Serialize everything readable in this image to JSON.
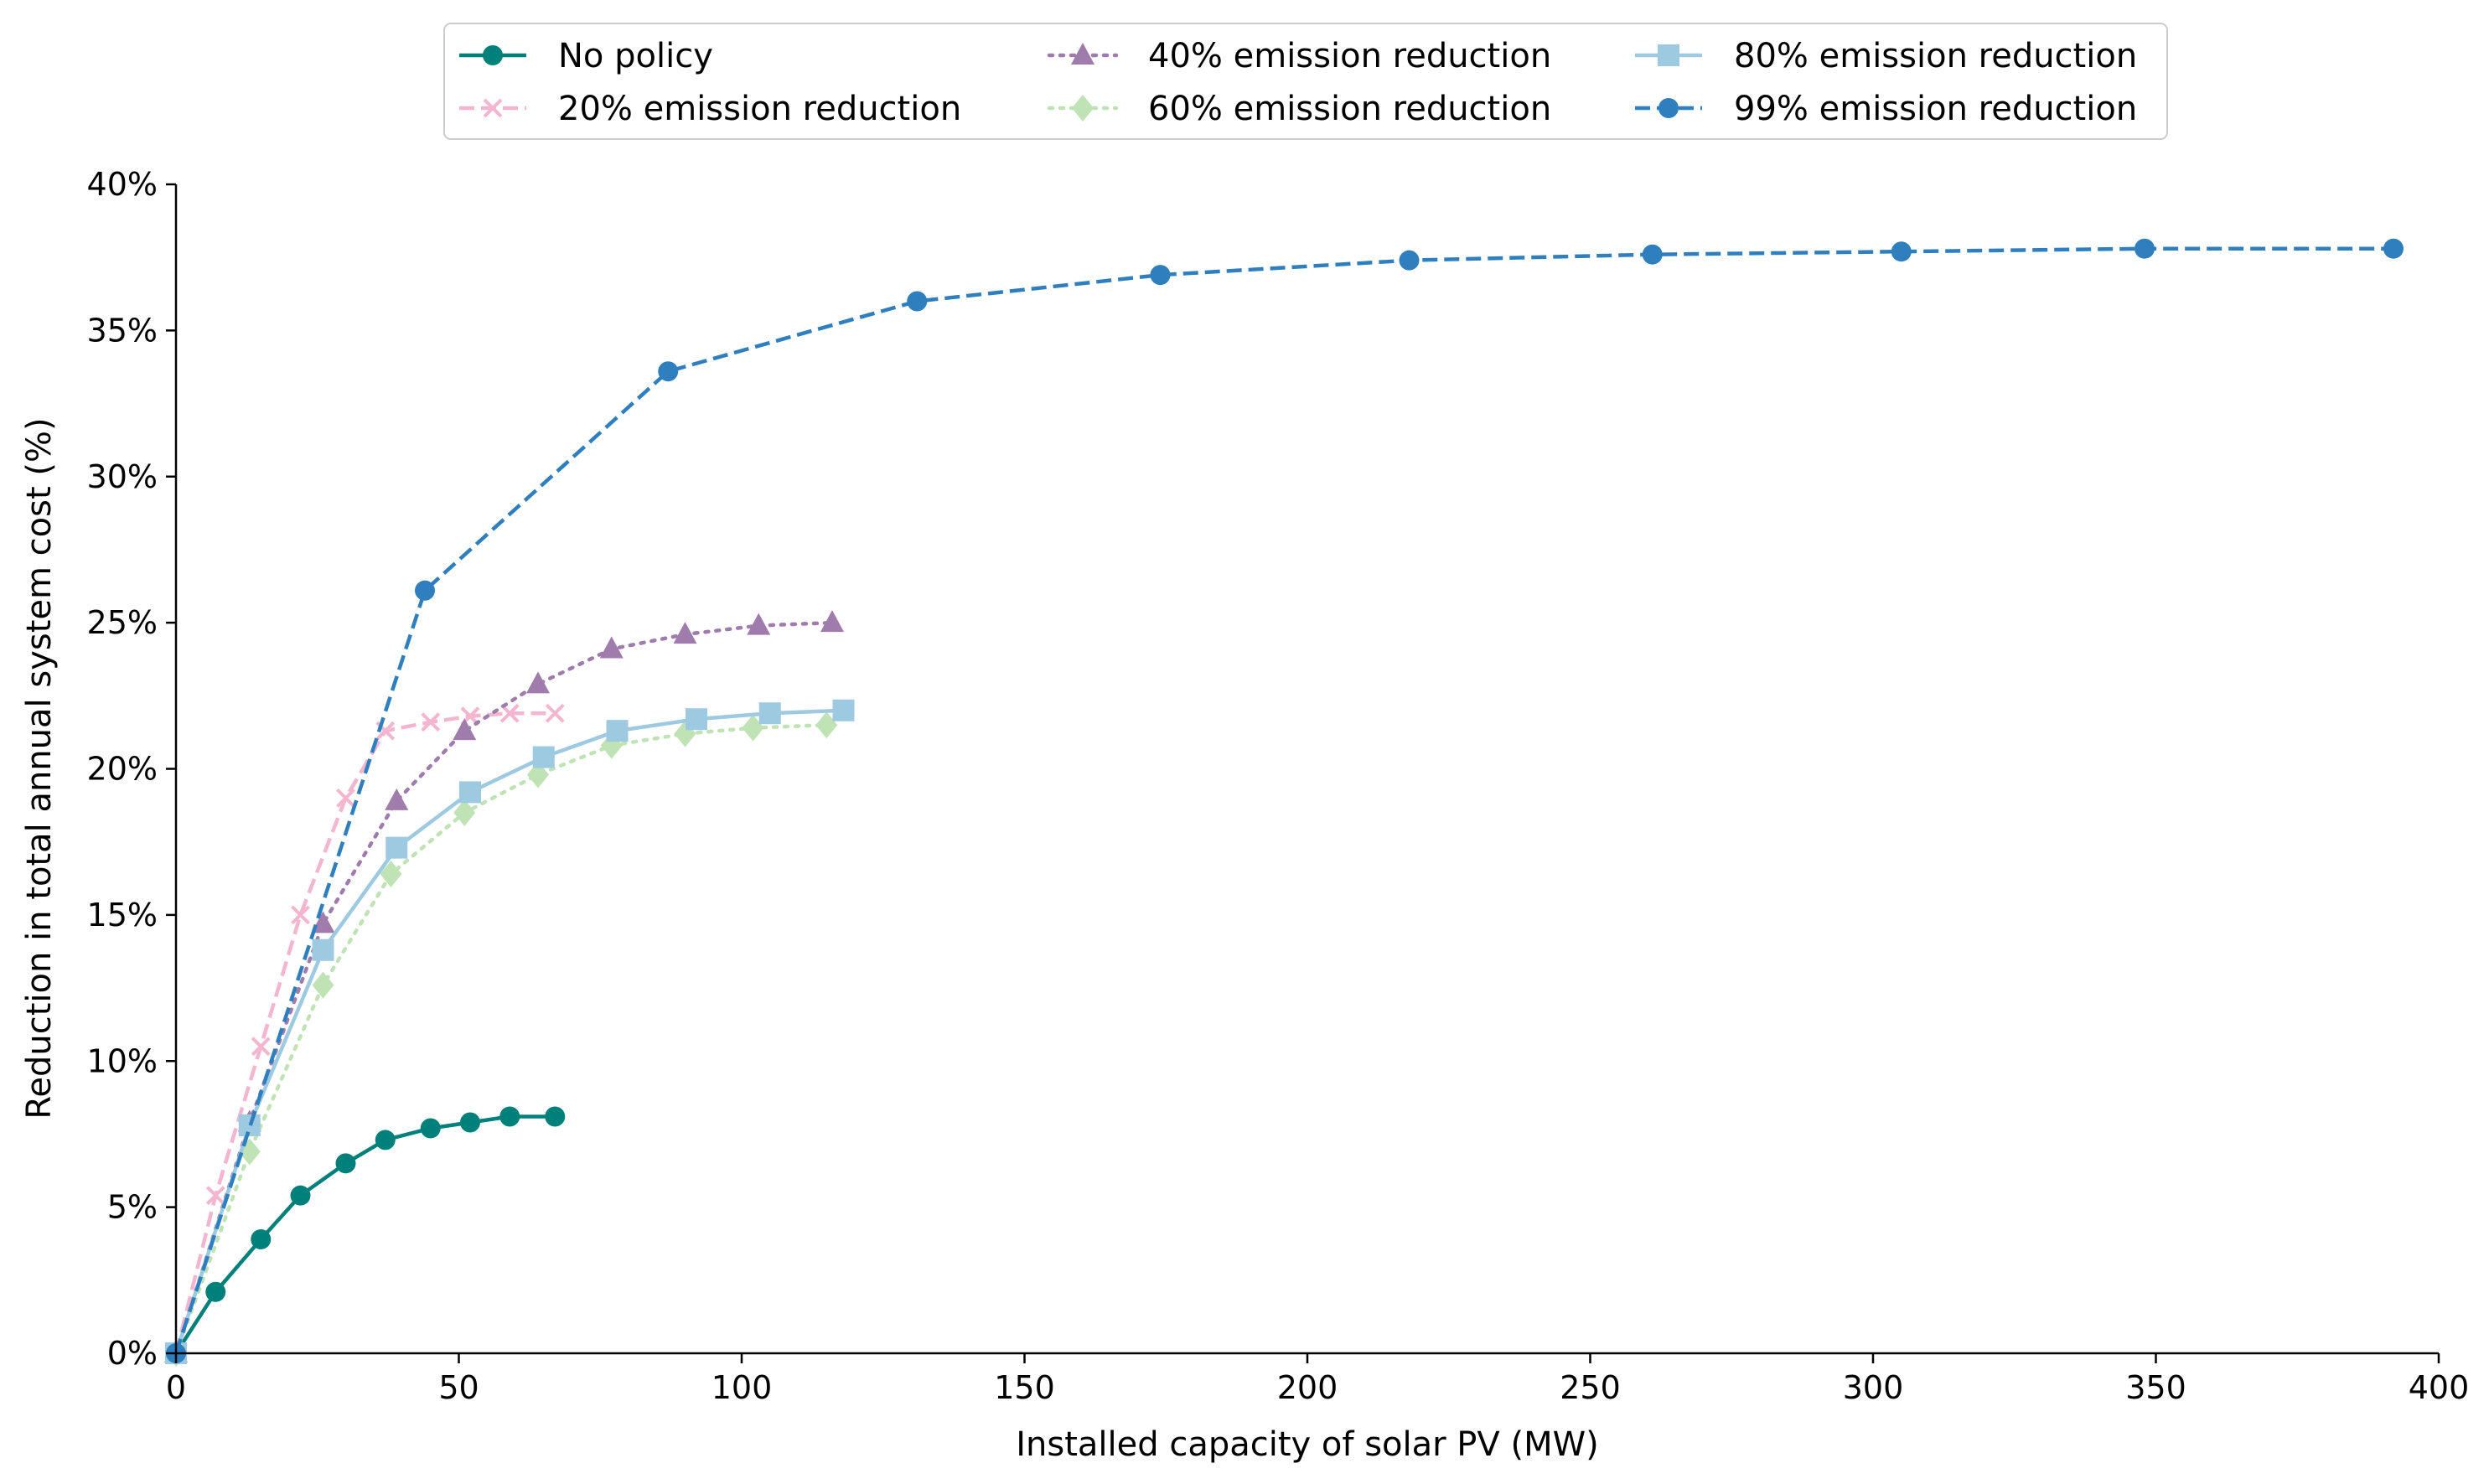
{
  "chart_data": {
    "type": "line",
    "xlabel": "Installed capacity of solar PV (MW)",
    "ylabel": "Reduction in total annual system cost (%)",
    "xlim": [
      0,
      400
    ],
    "ylim": [
      0,
      40
    ],
    "xticks": [
      0,
      50,
      100,
      150,
      200,
      250,
      300,
      350,
      400
    ],
    "yticks": [
      0,
      5,
      10,
      15,
      20,
      25,
      30,
      35,
      40
    ],
    "xtick_labels": [
      "0",
      "50",
      "100",
      "150",
      "200",
      "250",
      "300",
      "350",
      "400"
    ],
    "ytick_labels": [
      "0%",
      "5%",
      "10%",
      "15%",
      "20%",
      "25%",
      "30%",
      "35%",
      "40%"
    ],
    "grid": false,
    "legend_position": "top-center",
    "series": [
      {
        "name": "No policy",
        "color": "#00807a",
        "dash": "solid",
        "marker": "circle",
        "points": [
          [
            0,
            0
          ],
          [
            7,
            2.1
          ],
          [
            15,
            3.9
          ],
          [
            22,
            5.4
          ],
          [
            30,
            6.5
          ],
          [
            37,
            7.3
          ],
          [
            45,
            7.7
          ],
          [
            52,
            7.9
          ],
          [
            59,
            8.1
          ],
          [
            67,
            8.1
          ]
        ]
      },
      {
        "name": "20% emission reduction",
        "color": "#f4b6cf",
        "dash": "dashed",
        "marker": "x",
        "points": [
          [
            0,
            0
          ],
          [
            7,
            5.4
          ],
          [
            15,
            10.5
          ],
          [
            22,
            15.0
          ],
          [
            30,
            19.0
          ],
          [
            37,
            21.3
          ],
          [
            45,
            21.6
          ],
          [
            52,
            21.8
          ],
          [
            59,
            21.9
          ],
          [
            67,
            21.9
          ]
        ]
      },
      {
        "name": "40% emission reduction",
        "color": "#a07cad",
        "dash": "dotted",
        "marker": "triangle",
        "points": [
          [
            0,
            0
          ],
          [
            13,
            7.9
          ],
          [
            26,
            14.7
          ],
          [
            39,
            18.9
          ],
          [
            51,
            21.3
          ],
          [
            64,
            22.9
          ],
          [
            77,
            24.1
          ],
          [
            90,
            24.6
          ],
          [
            103,
            24.9
          ],
          [
            116,
            25.0
          ]
        ]
      },
      {
        "name": "60% emission reduction",
        "color": "#bfe3b4",
        "dash": "dotted",
        "marker": "diamond",
        "points": [
          [
            0,
            0
          ],
          [
            13,
            6.9
          ],
          [
            26,
            12.6
          ],
          [
            38,
            16.4
          ],
          [
            51,
            18.5
          ],
          [
            64,
            19.8
          ],
          [
            77,
            20.8
          ],
          [
            90,
            21.2
          ],
          [
            102,
            21.4
          ],
          [
            115,
            21.5
          ]
        ]
      },
      {
        "name": "80% emission reduction",
        "color": "#9ecae1",
        "dash": "solid",
        "marker": "square",
        "points": [
          [
            0,
            0
          ],
          [
            13,
            7.8
          ],
          [
            26,
            13.8
          ],
          [
            39,
            17.3
          ],
          [
            52,
            19.2
          ],
          [
            65,
            20.4
          ],
          [
            78,
            21.3
          ],
          [
            92,
            21.7
          ],
          [
            105,
            21.9
          ],
          [
            118,
            22.0
          ]
        ]
      },
      {
        "name": "99% emission reduction",
        "color": "#2f7fbf",
        "dash": "dashed",
        "marker": "circle",
        "points": [
          [
            0,
            0
          ],
          [
            44,
            26.1
          ],
          [
            87,
            33.6
          ],
          [
            131,
            36.0
          ],
          [
            174,
            36.9
          ],
          [
            218,
            37.4
          ],
          [
            261,
            37.6
          ],
          [
            305,
            37.7
          ],
          [
            348,
            37.8
          ],
          [
            392,
            37.8
          ]
        ]
      }
    ]
  }
}
